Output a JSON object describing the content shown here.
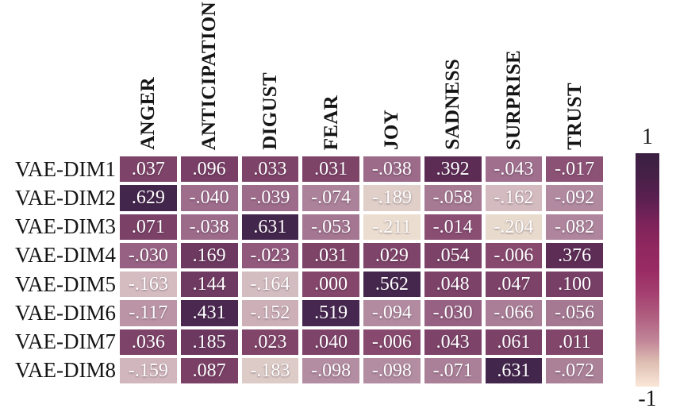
{
  "chart_data": {
    "type": "heatmap",
    "title": "",
    "columns": [
      "ANGER",
      "ANTICIPATION",
      "DIGUST",
      "FEAR",
      "JOY",
      "SADNESS",
      "SURPRISE",
      "TRUST"
    ],
    "rows": [
      "VAE-DIM1",
      "VAE-DIM2",
      "VAE-DIM3",
      "VAE-DIM4",
      "VAE-DIM5",
      "VAE-DIM6",
      "VAE-DIM7",
      "VAE-DIM8"
    ],
    "cells": [
      [
        ".037",
        ".096",
        ".033",
        ".031",
        "-.038",
        ".392",
        "-.043",
        "-.017"
      ],
      [
        ".629",
        "-.040",
        "-.039",
        "-.074",
        "-.189",
        "-.058",
        "-.162",
        "-.092"
      ],
      [
        ".071",
        "-.038",
        ".631",
        "-.053",
        "-.211",
        "-.014",
        "-.204",
        "-.082"
      ],
      [
        "-.030",
        ".169",
        "-.023",
        ".031",
        ".029",
        ".054",
        "-.006",
        ".376"
      ],
      [
        "-.163",
        ".144",
        "-.164",
        ".000",
        ".562",
        ".048",
        ".047",
        ".100"
      ],
      [
        "-.117",
        ".431",
        "-.152",
        ".519",
        "-.094",
        "-.030",
        "-.066",
        "-.056"
      ],
      [
        ".036",
        ".185",
        ".023",
        ".040",
        "-.006",
        ".043",
        ".061",
        ".011"
      ],
      [
        "-.159",
        ".087",
        "-.183",
        "-.098",
        "-.098",
        "-.071",
        ".631",
        "-.072"
      ]
    ],
    "values": [
      [
        0.037,
        0.096,
        0.033,
        0.031,
        -0.038,
        0.392,
        -0.043,
        -0.017
      ],
      [
        0.629,
        -0.04,
        -0.039,
        -0.074,
        -0.189,
        -0.058,
        -0.162,
        -0.092
      ],
      [
        0.071,
        -0.038,
        0.631,
        -0.053,
        -0.211,
        -0.014,
        -0.204,
        -0.082
      ],
      [
        -0.03,
        0.169,
        -0.023,
        0.031,
        0.029,
        0.054,
        -0.006,
        0.376
      ],
      [
        -0.163,
        0.144,
        -0.164,
        0.0,
        0.562,
        0.048,
        0.047,
        0.1
      ],
      [
        -0.117,
        0.431,
        -0.152,
        0.519,
        -0.094,
        -0.03,
        -0.066,
        -0.056
      ],
      [
        0.036,
        0.185,
        0.023,
        0.04,
        -0.006,
        0.043,
        0.061,
        0.011
      ],
      [
        -0.159,
        0.087,
        -0.183,
        -0.098,
        -0.098,
        -0.071,
        0.631,
        -0.072
      ]
    ],
    "colorbar": {
      "max_label": "1",
      "min_label": "-1",
      "gradient_top_to_bottom": [
        "#3a2043",
        "#472047",
        "#5c2050",
        "#7c235a",
        "#90275f",
        "#982b63",
        "#a43f6f",
        "#b05e80",
        "#c08497",
        "#dfc0b3",
        "#fae7d8"
      ]
    },
    "color_stops": [
      [
        -0.22,
        "#eee1d4"
      ],
      [
        -0.204,
        "#e8dacd"
      ],
      [
        -0.183,
        "#dccbc6"
      ],
      [
        -0.163,
        "#d4bcc0"
      ],
      [
        -0.152,
        "#ccafb7"
      ],
      [
        -0.117,
        "#bb95a6"
      ],
      [
        -0.092,
        "#b18aa0"
      ],
      [
        -0.058,
        "#a67a93"
      ],
      [
        -0.04,
        "#9e6d8c"
      ],
      [
        -0.014,
        "#8a4e73"
      ],
      [
        0.0,
        "#84476b"
      ],
      [
        0.037,
        "#7d4368"
      ],
      [
        0.096,
        "#793f66"
      ],
      [
        0.144,
        "#6f3a61"
      ],
      [
        0.185,
        "#6c3860"
      ],
      [
        0.392,
        "#5c2c55"
      ],
      [
        0.431,
        "#4b2850"
      ],
      [
        0.519,
        "#462750"
      ],
      [
        0.631,
        "#43264c"
      ]
    ],
    "layout": {
      "grid_on": false,
      "legend_position": "right-colorbar",
      "column_labels_rotation": 90,
      "value_format": "no leading zero, 3 decimals"
    }
  }
}
